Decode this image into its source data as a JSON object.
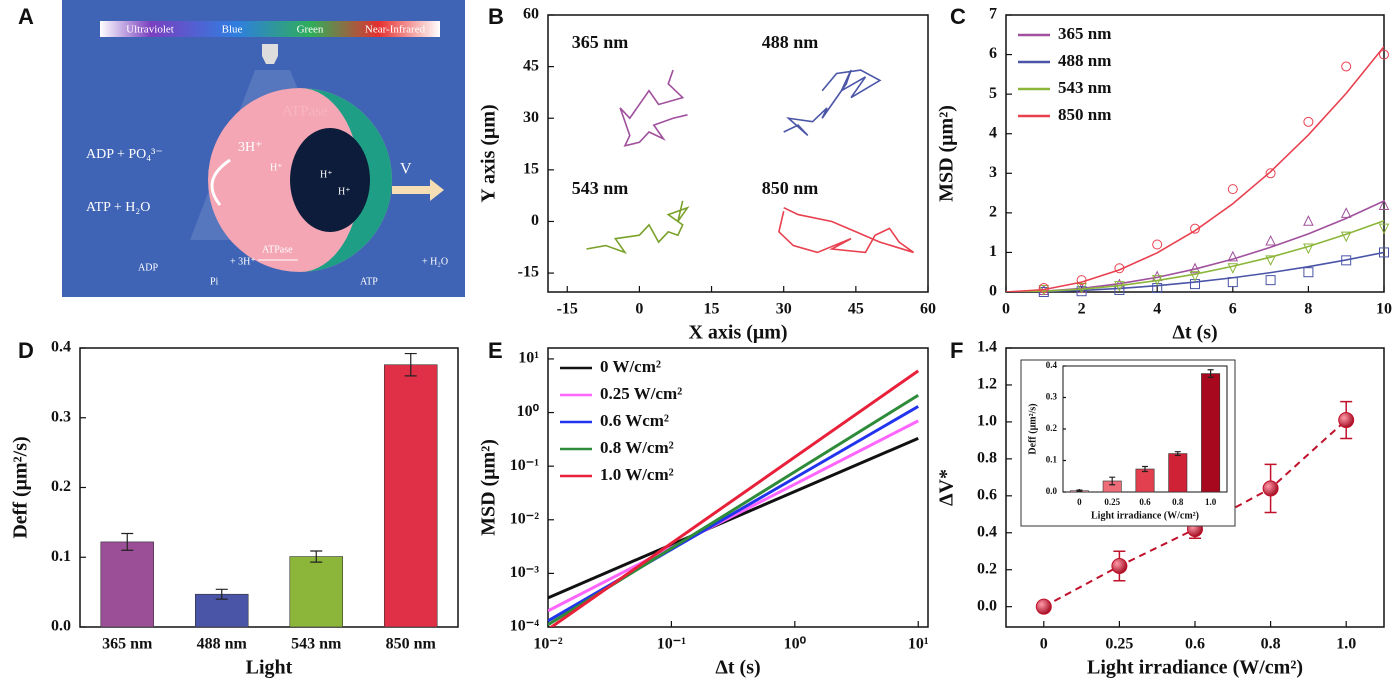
{
  "illustration": {
    "panel": "A",
    "spectrum": [
      "Ultraviolet",
      "Blue",
      "Green",
      "Near-Infrared"
    ],
    "enzyme": "ATPase",
    "protons": "3H⁺",
    "proton": "H⁺",
    "reactants": "ADP + PO₄³⁻",
    "products": "ATP + H₂O",
    "velocity": "V",
    "equation": {
      "left": "ADP",
      "mid": "Pi",
      "protons": "+ 3H⁺",
      "enzyme": "ATPase",
      "right": "ATP",
      "water": "+ H₂O"
    }
  },
  "chart_data": [
    {
      "type": "line",
      "panel": "B",
      "xlabel": "X axis (μm)",
      "ylabel": "Y axis (μm)",
      "xlim": [
        -19,
        60
      ],
      "ylim": [
        -20.5,
        60
      ],
      "xticks": [
        -15,
        0,
        15,
        30,
        45,
        60
      ],
      "yticks": [
        -15,
        0,
        15,
        30,
        45,
        60
      ],
      "series": [
        {
          "name": "365 nm",
          "color": "#a0509c",
          "x": [
            7,
            6,
            9,
            4,
            2,
            -2,
            -4,
            -3,
            -2,
            -3,
            0,
            2,
            5,
            3,
            7,
            10
          ],
          "values": [
            44,
            40,
            36,
            34,
            38,
            30,
            33,
            29,
            25,
            22,
            23,
            26,
            24,
            28,
            30,
            31
          ]
        },
        {
          "name": "488 nm",
          "color": "#4a55a8",
          "x": [
            30,
            33,
            35,
            31,
            36,
            39,
            38,
            43,
            44,
            42,
            47,
            44,
            50,
            46,
            41,
            38
          ],
          "values": [
            26,
            28,
            25,
            30,
            29,
            33,
            30,
            40,
            44,
            38,
            42,
            36,
            41,
            44,
            43,
            38
          ]
        },
        {
          "name": "543 nm",
          "color": "#7aa22a",
          "x": [
            -11,
            -7,
            -3,
            -5,
            0,
            2,
            4,
            6,
            8,
            9,
            6,
            10,
            8,
            9
          ],
          "values": [
            -8,
            -7,
            -9,
            -5,
            -4,
            -1,
            -6,
            -3,
            -4,
            -1,
            2,
            4,
            0,
            6
          ]
        },
        {
          "name": "850 nm",
          "color": "#e8404f",
          "x": [
            30,
            29,
            32,
            37,
            44,
            40,
            47,
            49,
            52,
            54,
            57,
            50,
            45,
            40,
            33,
            30
          ],
          "values": [
            3,
            -3,
            -7,
            -9,
            -5,
            -8,
            -9,
            -4,
            -2,
            -6,
            -9,
            -6,
            -3,
            0,
            2,
            4
          ]
        }
      ]
    },
    {
      "type": "line",
      "panel": "C",
      "xlabel": "Δt (s)",
      "ylabel": "MSD (μm²)",
      "xlim": [
        0,
        10
      ],
      "ylim": [
        0,
        7
      ],
      "xticks": [
        0,
        2,
        4,
        6,
        8,
        10
      ],
      "yticks": [
        0,
        1,
        2,
        3,
        4,
        5,
        6,
        7
      ],
      "legend": "upper left",
      "x": [
        0,
        1,
        2,
        3,
        4,
        5,
        6,
        7,
        8,
        9,
        10
      ],
      "point_x": [
        1,
        2,
        3,
        4,
        5,
        6,
        7,
        8,
        9,
        10
      ],
      "series": [
        {
          "name": "365 nm",
          "color": "#a0509c",
          "marker": "triangle",
          "values": [
            0,
            0.02,
            0.09,
            0.21,
            0.37,
            0.58,
            0.83,
            1.13,
            1.47,
            1.86,
            2.3
          ],
          "point_values": [
            0.05,
            0.1,
            0.2,
            0.4,
            0.6,
            0.9,
            1.3,
            1.8,
            2.0,
            2.2
          ]
        },
        {
          "name": "488 nm",
          "color": "#4a55a8",
          "marker": "square",
          "values": [
            0,
            0.01,
            0.04,
            0.09,
            0.16,
            0.25,
            0.36,
            0.49,
            0.64,
            0.81,
            1.0
          ],
          "point_values": [
            0,
            0.02,
            0.05,
            0.1,
            0.2,
            0.25,
            0.3,
            0.5,
            0.8,
            1.0
          ]
        },
        {
          "name": "543 nm",
          "color": "#8bb63a",
          "marker": "down-triangle",
          "values": [
            0,
            0.02,
            0.07,
            0.16,
            0.29,
            0.45,
            0.65,
            0.88,
            1.15,
            1.46,
            1.8
          ],
          "point_values": [
            0.05,
            0.1,
            0.15,
            0.3,
            0.4,
            0.6,
            0.8,
            1.1,
            1.4,
            1.6
          ]
        },
        {
          "name": "850 nm",
          "color": "#e8404f",
          "marker": "circle",
          "values": [
            0,
            0.06,
            0.25,
            0.56,
            0.99,
            1.55,
            2.23,
            3.04,
            3.97,
            5.02,
            6.2
          ],
          "point_values": [
            0.1,
            0.3,
            0.6,
            1.2,
            1.6,
            2.6,
            3.0,
            4.3,
            5.7,
            6.0
          ]
        }
      ]
    },
    {
      "type": "bar",
      "panel": "D",
      "xlabel": "Light",
      "ylabel": "Deff (μm²/s)",
      "ylim": [
        0,
        0.4
      ],
      "yticks": [
        {
          "value": 0,
          "label": "0.0"
        },
        0.1,
        0.2,
        0.3,
        0.4
      ],
      "categories": [
        "365 nm",
        "488 nm",
        "543 nm",
        "850 nm"
      ],
      "values": [
        0.122,
        0.047,
        0.101,
        0.376
      ],
      "errors": [
        0.012,
        0.007,
        0.008,
        0.016
      ],
      "colors": [
        "#9b4f96",
        "#4a55a8",
        "#8bb63a",
        "#e03048"
      ]
    },
    {
      "type": "line",
      "panel": "E",
      "xlabel": "Δt (s)",
      "ylabel": "MSD (μm²)",
      "xscale": "log",
      "yscale": "log",
      "xlim": [
        0.01,
        12
      ],
      "ylim": [
        0.0001,
        16
      ],
      "xticks": [
        {
          "value": 0.01,
          "label": "10⁻²"
        },
        {
          "value": 0.1,
          "label": "10⁻¹"
        },
        {
          "value": 1,
          "label": "10⁰"
        },
        {
          "value": 10,
          "label": "10¹"
        }
      ],
      "yticks": [
        {
          "value": 0.0001,
          "label": "10⁻⁴"
        },
        {
          "value": 0.001,
          "label": "10⁻³"
        },
        {
          "value": 0.01,
          "label": "10⁻²"
        },
        {
          "value": 0.1,
          "label": "10⁻¹"
        },
        {
          "value": 1,
          "label": "10⁰"
        },
        {
          "value": 10,
          "label": "10¹"
        }
      ],
      "legend": "upper left",
      "x": [
        0.01,
        10
      ],
      "series": [
        {
          "name": "0  W/cm²",
          "color": "#111111",
          "values": [
            0.00035,
            0.33
          ]
        },
        {
          "name": "0.25 W/cm²",
          "color": "#ff66ff",
          "values": [
            0.0002,
            0.7
          ]
        },
        {
          "name": "0.6 Wcm²",
          "color": "#2233ee",
          "values": [
            0.00013,
            1.3
          ]
        },
        {
          "name": "0.8 W/cm²",
          "color": "#2e8b3a",
          "values": [
            0.00011,
            2.1
          ]
        },
        {
          "name": "1.0 W/cm²",
          "color": "#e8203a",
          "values": [
            9e-05,
            6
          ]
        }
      ]
    },
    {
      "type": "scatter",
      "panel": "F",
      "xlabel": "Light irradiance (W/cm²)",
      "ylabel": "ΔV*",
      "ylim": [
        -0.11,
        1.4
      ],
      "yticks": [
        {
          "value": 0,
          "label": "0.0"
        },
        0.2,
        0.4,
        0.6,
        0.8,
        {
          "value": 1,
          "label": "1.0"
        },
        1.2,
        1.4
      ],
      "categories": [
        "0",
        "0.25",
        "0.6",
        "0.8",
        "1.0"
      ],
      "values": [
        0,
        0.22,
        0.42,
        0.64,
        1.01
      ],
      "errors": [
        0,
        0.08,
        0.05,
        0.13,
        0.1
      ],
      "color": "#c0102a"
    },
    {
      "type": "bar",
      "xlabel": "Light irradiance (W/cm²)",
      "ylabel": "Deff (μm²/s)",
      "ylim": [
        0,
        0.4
      ],
      "yticks": [
        {
          "value": 0,
          "label": "0.0"
        },
        0.1,
        0.2,
        0.3,
        0.4
      ],
      "categories": [
        "0",
        "0.25",
        "0.6",
        "0.8",
        "1.0"
      ],
      "values": [
        0.004,
        0.035,
        0.073,
        0.122,
        0.376
      ],
      "errors": [
        0.002,
        0.012,
        0.008,
        0.006,
        0.012
      ],
      "colors": [
        "#f4a0a8",
        "#ee6b78",
        "#e2404f",
        "#d02236",
        "#a8081e"
      ]
    }
  ]
}
